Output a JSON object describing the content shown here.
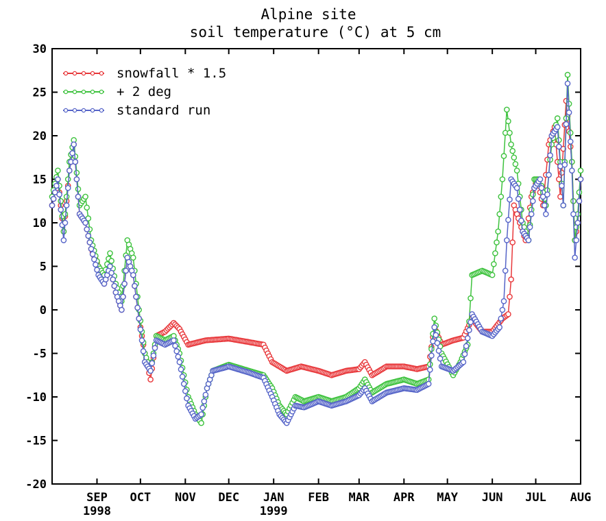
{
  "chart_data": {
    "type": "line",
    "title": "Alpine site",
    "subtitle": "soil temperature (°C) at 5 cm",
    "xlabel": "",
    "ylabel": "",
    "ylim": [
      -20,
      30
    ],
    "yticks": [
      "30",
      "25",
      "20",
      "15",
      "10",
      "5",
      "0",
      "-5",
      "-10",
      "-15",
      "-20"
    ],
    "xlim": [
      "1998-08-01",
      "1999-08-01"
    ],
    "xticks": [
      {
        "label": "SEP",
        "sub": "1998",
        "date": "1998-09-01"
      },
      {
        "label": "OCT",
        "sub": "",
        "date": "1998-10-01"
      },
      {
        "label": "NOV",
        "sub": "",
        "date": "1998-11-01"
      },
      {
        "label": "DEC",
        "sub": "",
        "date": "1998-12-01"
      },
      {
        "label": "JAN",
        "sub": "1999",
        "date": "1999-01-01"
      },
      {
        "label": "FEB",
        "sub": "",
        "date": "1999-02-01"
      },
      {
        "label": "MAR",
        "sub": "",
        "date": "1999-03-01"
      },
      {
        "label": "APR",
        "sub": "",
        "date": "1999-04-01"
      },
      {
        "label": "MAY",
        "sub": "",
        "date": "1999-05-01"
      },
      {
        "label": "JUN",
        "sub": "",
        "date": "1999-06-01"
      },
      {
        "label": "JUL",
        "sub": "",
        "date": "1999-07-01"
      },
      {
        "label": "AUG",
        "sub": "",
        "date": "1999-08-01"
      }
    ],
    "legend_position": "top-left",
    "grid": false,
    "series": [
      {
        "name": "snowfall * 1.5",
        "color": "#e8383b",
        "points": [
          [
            "1998-08-01",
            12
          ],
          [
            "1998-08-05",
            15
          ],
          [
            "1998-08-09",
            9
          ],
          [
            "1998-08-13",
            16
          ],
          [
            "1998-08-16",
            19
          ],
          [
            "1998-08-20",
            11
          ],
          [
            "1998-08-24",
            10
          ],
          [
            "1998-08-28",
            7
          ],
          [
            "1998-09-02",
            5
          ],
          [
            "1998-09-06",
            3
          ],
          [
            "1998-09-10",
            5
          ],
          [
            "1998-09-14",
            2
          ],
          [
            "1998-09-18",
            0
          ],
          [
            "1998-09-22",
            6
          ],
          [
            "1998-09-26",
            4
          ],
          [
            "1998-09-30",
            -1
          ],
          [
            "1998-10-04",
            -5
          ],
          [
            "1998-10-08",
            -8
          ],
          [
            "1998-10-12",
            -3
          ],
          [
            "1998-10-18",
            -2.5
          ],
          [
            "1998-10-24",
            -1.5
          ],
          [
            "1998-10-28",
            -2.2
          ],
          [
            "1998-11-03",
            -4
          ],
          [
            "1998-11-15",
            -3.5
          ],
          [
            "1998-12-01",
            -3.3
          ],
          [
            "1998-12-15",
            -3.7
          ],
          [
            "1998-12-25",
            -4
          ],
          [
            "1998-12-31",
            -6
          ],
          [
            "1999-01-10",
            -7
          ],
          [
            "1999-01-20",
            -6.5
          ],
          [
            "1999-02-01",
            -7
          ],
          [
            "1999-02-10",
            -7.5
          ],
          [
            "1999-02-20",
            -7
          ],
          [
            "1999-03-01",
            -6.8
          ],
          [
            "1999-03-05",
            -6
          ],
          [
            "1999-03-10",
            -7.5
          ],
          [
            "1999-03-20",
            -6.5
          ],
          [
            "1999-04-01",
            -6.5
          ],
          [
            "1999-04-10",
            -6.8
          ],
          [
            "1999-04-18",
            -6.5
          ],
          [
            "1999-04-22",
            -2
          ],
          [
            "1999-04-27",
            -4
          ],
          [
            "1999-05-05",
            -3.5
          ],
          [
            "1999-05-12",
            -3.2
          ],
          [
            "1999-05-18",
            -1
          ],
          [
            "1999-05-25",
            -2.5
          ],
          [
            "1999-06-01",
            -2.5
          ],
          [
            "1999-06-08",
            -1
          ],
          [
            "1999-06-12",
            -0.5
          ],
          [
            "1999-06-14",
            3.5
          ],
          [
            "1999-06-16",
            12
          ],
          [
            "1999-06-20",
            10
          ],
          [
            "1999-06-24",
            8
          ],
          [
            "1999-06-28",
            13
          ],
          [
            "1999-07-02",
            15
          ],
          [
            "1999-07-06",
            12
          ],
          [
            "1999-07-10",
            19
          ],
          [
            "1999-07-14",
            21
          ],
          [
            "1999-07-18",
            13
          ],
          [
            "1999-07-22",
            24
          ],
          [
            "1999-07-26",
            17
          ],
          [
            "1999-07-28",
            8
          ],
          [
            "1999-07-30",
            10
          ],
          [
            "1999-08-01",
            15
          ]
        ]
      },
      {
        "name": "+ 2 deg",
        "color": "#3dc23d",
        "points": [
          [
            "1998-08-01",
            13
          ],
          [
            "1998-08-05",
            16
          ],
          [
            "1998-08-09",
            9
          ],
          [
            "1998-08-13",
            17
          ],
          [
            "1998-08-16",
            19.5
          ],
          [
            "1998-08-20",
            12
          ],
          [
            "1998-08-24",
            13
          ],
          [
            "1998-08-28",
            8
          ],
          [
            "1998-09-02",
            5
          ],
          [
            "1998-09-06",
            4
          ],
          [
            "1998-09-10",
            6.5
          ],
          [
            "1998-09-14",
            3
          ],
          [
            "1998-09-18",
            1
          ],
          [
            "1998-09-22",
            8
          ],
          [
            "1998-09-26",
            6
          ],
          [
            "1998-09-30",
            0
          ],
          [
            "1998-10-04",
            -5
          ],
          [
            "1998-10-08",
            -7
          ],
          [
            "1998-10-12",
            -3
          ],
          [
            "1998-10-18",
            -3.5
          ],
          [
            "1998-10-24",
            -3
          ],
          [
            "1998-10-28",
            -5
          ],
          [
            "1998-11-03",
            -10
          ],
          [
            "1998-11-08",
            -12
          ],
          [
            "1998-11-12",
            -13
          ],
          [
            "1998-11-16",
            -9
          ],
          [
            "1998-11-20",
            -7
          ],
          [
            "1998-12-01",
            -6.3
          ],
          [
            "1998-12-15",
            -7
          ],
          [
            "1998-12-25",
            -7.5
          ],
          [
            "1998-12-31",
            -9
          ],
          [
            "1999-01-05",
            -11
          ],
          [
            "1999-01-10",
            -12
          ],
          [
            "1999-01-16",
            -10
          ],
          [
            "1999-01-22",
            -10.5
          ],
          [
            "1999-02-01",
            -10
          ],
          [
            "1999-02-10",
            -10.5
          ],
          [
            "1999-02-20",
            -10
          ],
          [
            "1999-03-01",
            -9
          ],
          [
            "1999-03-05",
            -8
          ],
          [
            "1999-03-10",
            -9.5
          ],
          [
            "1999-03-20",
            -8.5
          ],
          [
            "1999-04-01",
            -8
          ],
          [
            "1999-04-10",
            -8.5
          ],
          [
            "1999-04-18",
            -8
          ],
          [
            "1999-04-22",
            -1
          ],
          [
            "1999-04-27",
            -5
          ],
          [
            "1999-05-05",
            -7.5
          ],
          [
            "1999-05-10",
            -6
          ],
          [
            "1999-05-15",
            -4
          ],
          [
            "1999-05-18",
            4
          ],
          [
            "1999-05-25",
            4.5
          ],
          [
            "1999-06-01",
            4
          ],
          [
            "1999-06-05",
            9
          ],
          [
            "1999-06-08",
            15
          ],
          [
            "1999-06-11",
            23
          ],
          [
            "1999-06-14",
            19
          ],
          [
            "1999-06-18",
            16
          ],
          [
            "1999-06-22",
            10
          ],
          [
            "1999-06-26",
            8
          ],
          [
            "1999-06-30",
            15
          ],
          [
            "1999-07-04",
            15
          ],
          [
            "1999-07-08",
            12
          ],
          [
            "1999-07-12",
            19
          ],
          [
            "1999-07-16",
            22
          ],
          [
            "1999-07-20",
            12
          ],
          [
            "1999-07-23",
            27
          ],
          [
            "1999-07-26",
            17
          ],
          [
            "1999-07-28",
            8
          ],
          [
            "1999-07-30",
            11
          ],
          [
            "1999-08-01",
            16
          ]
        ]
      },
      {
        "name": "standard run",
        "color": "#5564c8",
        "points": [
          [
            "1998-08-01",
            12
          ],
          [
            "1998-08-05",
            15
          ],
          [
            "1998-08-09",
            8
          ],
          [
            "1998-08-13",
            16
          ],
          [
            "1998-08-16",
            19
          ],
          [
            "1998-08-20",
            11
          ],
          [
            "1998-08-24",
            10
          ],
          [
            "1998-08-28",
            7
          ],
          [
            "1998-09-02",
            4
          ],
          [
            "1998-09-06",
            3
          ],
          [
            "1998-09-10",
            5
          ],
          [
            "1998-09-14",
            2
          ],
          [
            "1998-09-18",
            0
          ],
          [
            "1998-09-22",
            6
          ],
          [
            "1998-09-26",
            4
          ],
          [
            "1998-09-30",
            -1
          ],
          [
            "1998-10-04",
            -6
          ],
          [
            "1998-10-08",
            -7
          ],
          [
            "1998-10-12",
            -3.5
          ],
          [
            "1998-10-18",
            -4
          ],
          [
            "1998-10-24",
            -3.5
          ],
          [
            "1998-10-28",
            -6
          ],
          [
            "1998-11-03",
            -11
          ],
          [
            "1998-11-08",
            -12.5
          ],
          [
            "1998-11-12",
            -12
          ],
          [
            "1998-11-16",
            -9
          ],
          [
            "1998-11-20",
            -7
          ],
          [
            "1998-12-01",
            -6.5
          ],
          [
            "1998-12-15",
            -7.2
          ],
          [
            "1998-12-25",
            -7.8
          ],
          [
            "1998-12-31",
            -10
          ],
          [
            "1999-01-05",
            -12
          ],
          [
            "1999-01-10",
            -13
          ],
          [
            "1999-01-16",
            -11
          ],
          [
            "1999-01-22",
            -11.2
          ],
          [
            "1999-02-01",
            -10.5
          ],
          [
            "1999-02-10",
            -11
          ],
          [
            "1999-02-20",
            -10.5
          ],
          [
            "1999-03-01",
            -9.8
          ],
          [
            "1999-03-05",
            -9
          ],
          [
            "1999-03-10",
            -10.5
          ],
          [
            "1999-03-20",
            -9.5
          ],
          [
            "1999-04-01",
            -9
          ],
          [
            "1999-04-10",
            -9.2
          ],
          [
            "1999-04-18",
            -8.5
          ],
          [
            "1999-04-22",
            -2
          ],
          [
            "1999-04-27",
            -6.5
          ],
          [
            "1999-05-05",
            -7
          ],
          [
            "1999-05-12",
            -6
          ],
          [
            "1999-05-18",
            -0.5
          ],
          [
            "1999-05-25",
            -2.5
          ],
          [
            "1999-06-01",
            -3
          ],
          [
            "1999-06-06",
            -2
          ],
          [
            "1999-06-09",
            1
          ],
          [
            "1999-06-11",
            8
          ],
          [
            "1999-06-14",
            15
          ],
          [
            "1999-06-18",
            14
          ],
          [
            "1999-06-22",
            9
          ],
          [
            "1999-06-26",
            8
          ],
          [
            "1999-06-30",
            14
          ],
          [
            "1999-07-04",
            15
          ],
          [
            "1999-07-08",
            11
          ],
          [
            "1999-07-12",
            20
          ],
          [
            "1999-07-16",
            21
          ],
          [
            "1999-07-20",
            12
          ],
          [
            "1999-07-23",
            26
          ],
          [
            "1999-07-26",
            16
          ],
          [
            "1999-07-28",
            6
          ],
          [
            "1999-07-30",
            10
          ],
          [
            "1999-08-01",
            15
          ]
        ]
      }
    ]
  }
}
